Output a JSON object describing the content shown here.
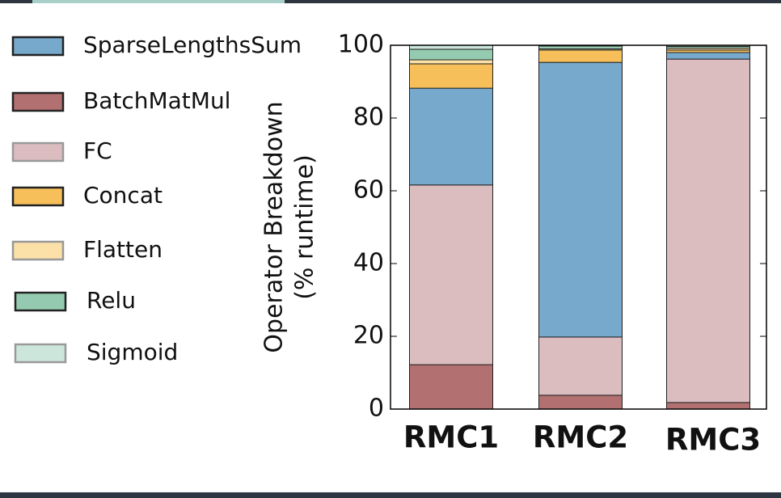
{
  "chart_data": {
    "type": "stacked_bar",
    "ylabel": [
      "Operator Breakdown",
      "(% runtime)"
    ],
    "categories": [
      "RMC1",
      "RMC2",
      "RMC3"
    ],
    "series": [
      {
        "name": "SparseLengthsSum",
        "color": "#77a9cc",
        "values": [
          26.6,
          75.5,
          1.8
        ]
      },
      {
        "name": "BatchMatMul",
        "color": "#b27070",
        "values": [
          12.2,
          3.8,
          1.8
        ]
      },
      {
        "name": "FC",
        "color": "#dbbcbf",
        "values": [
          49.4,
          16,
          94.4
        ]
      },
      {
        "name": "Concat",
        "color": "#f6bf5a",
        "values": [
          6.7,
          3.4,
          0.7
        ]
      },
      {
        "name": "Flatten",
        "color": "#fbe0a8",
        "values": [
          1.1,
          0.3,
          0.5
        ]
      },
      {
        "name": "Relu",
        "color": "#94cbb0",
        "values": [
          2.9,
          0.8,
          0.5
        ]
      },
      {
        "name": "Sigmoid",
        "color": "#cde6dc",
        "values": [
          1.1,
          0.2,
          0.3
        ]
      }
    ],
    "ylim": [
      0,
      100
    ],
    "yticks": [
      0,
      20,
      40,
      60,
      80,
      100
    ]
  }
}
